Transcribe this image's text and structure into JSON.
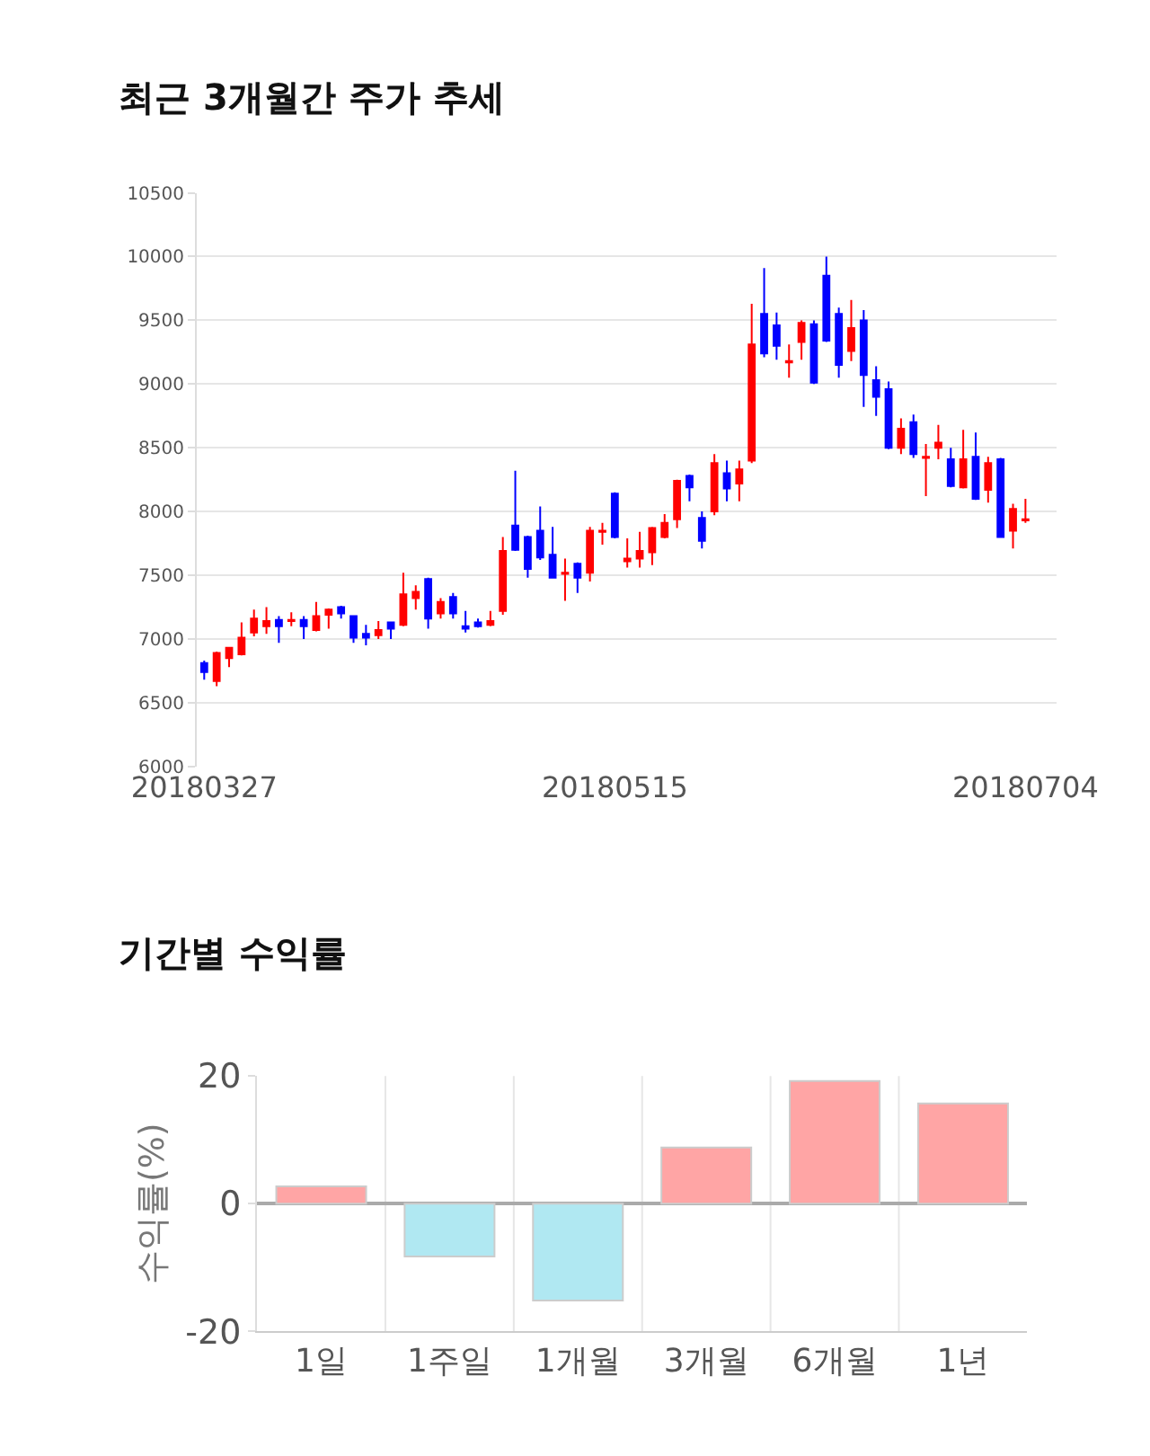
{
  "chart_data": [
    {
      "type": "candlestick",
      "title": "최근 3개월간 주가 추세",
      "categories": [
        "20180327",
        null,
        null,
        null,
        null,
        null,
        null,
        null,
        null,
        null,
        null,
        null,
        null,
        null,
        null,
        null,
        null,
        null,
        null,
        null,
        null,
        null,
        null,
        null,
        null,
        null,
        null,
        null,
        null,
        null,
        null,
        null,
        null,
        "20180515",
        null,
        null,
        null,
        null,
        null,
        null,
        null,
        null,
        null,
        null,
        null,
        null,
        null,
        null,
        null,
        null,
        null,
        null,
        null,
        null,
        null,
        null,
        null,
        null,
        null,
        null,
        null,
        null,
        null,
        null,
        null,
        null,
        "20180704"
      ],
      "ohlc": [
        [
          6810,
          6830,
          6680,
          6740
        ],
        [
          6670,
          6900,
          6630,
          6890
        ],
        [
          6850,
          6930,
          6780,
          6930
        ],
        [
          6880,
          7130,
          6870,
          7010
        ],
        [
          7050,
          7230,
          7020,
          7160
        ],
        [
          7100,
          7250,
          7040,
          7140
        ],
        [
          7150,
          7180,
          6970,
          7100
        ],
        [
          7140,
          7210,
          7100,
          7150
        ],
        [
          7150,
          7180,
          7000,
          7100
        ],
        [
          7070,
          7290,
          7060,
          7180
        ],
        [
          7190,
          7240,
          7080,
          7230
        ],
        [
          7250,
          7260,
          7160,
          7200
        ],
        [
          7180,
          7180,
          6970,
          7010
        ],
        [
          7040,
          7110,
          6950,
          7010
        ],
        [
          7030,
          7140,
          7000,
          7070
        ],
        [
          7130,
          7130,
          7000,
          7080
        ],
        [
          7110,
          7520,
          7100,
          7350
        ],
        [
          7320,
          7420,
          7230,
          7370
        ],
        [
          7470,
          7480,
          7080,
          7160
        ],
        [
          7200,
          7320,
          7160,
          7290
        ],
        [
          7330,
          7360,
          7160,
          7200
        ],
        [
          7100,
          7220,
          7050,
          7080
        ],
        [
          7130,
          7160,
          7090,
          7100
        ],
        [
          7110,
          7220,
          7100,
          7140
        ],
        [
          7220,
          7800,
          7190,
          7690
        ],
        [
          7890,
          8320,
          7690,
          7700
        ],
        [
          7800,
          7810,
          7480,
          7550
        ],
        [
          7850,
          8040,
          7620,
          7640
        ],
        [
          7660,
          7880,
          7480,
          7480
        ],
        [
          7510,
          7630,
          7300,
          7520
        ],
        [
          7590,
          7600,
          7360,
          7480
        ],
        [
          7520,
          7880,
          7450,
          7850
        ],
        [
          7840,
          7910,
          7740,
          7850
        ],
        [
          8140,
          8150,
          7790,
          7800
        ],
        [
          7610,
          7790,
          7560,
          7630
        ],
        [
          7630,
          7840,
          7560,
          7690
        ],
        [
          7680,
          7880,
          7580,
          7870
        ],
        [
          7800,
          7980,
          7790,
          7910
        ],
        [
          7940,
          8250,
          7870,
          8240
        ],
        [
          8280,
          8290,
          8080,
          8190
        ],
        [
          7950,
          8000,
          7710,
          7770
        ],
        [
          8000,
          8450,
          7970,
          8380
        ],
        [
          8300,
          8400,
          8080,
          8180
        ],
        [
          8220,
          8400,
          8080,
          8330
        ],
        [
          8400,
          9630,
          8380,
          9310
        ],
        [
          9550,
          9910,
          9210,
          9240
        ],
        [
          9460,
          9560,
          9190,
          9300
        ],
        [
          9170,
          9310,
          9050,
          9180
        ],
        [
          9330,
          9500,
          9190,
          9480
        ],
        [
          9470,
          9500,
          9000,
          9010
        ],
        [
          9850,
          10000,
          9330,
          9340
        ],
        [
          9550,
          9600,
          9050,
          9150
        ],
        [
          9260,
          9660,
          9180,
          9440
        ],
        [
          9500,
          9580,
          8820,
          9070
        ],
        [
          9030,
          9140,
          8750,
          8900
        ],
        [
          8960,
          9020,
          8490,
          8500
        ],
        [
          8500,
          8730,
          8450,
          8650
        ],
        [
          8700,
          8760,
          8420,
          8450
        ],
        [
          8420,
          8530,
          8120,
          8430
        ],
        [
          8500,
          8680,
          8410,
          8540
        ],
        [
          8410,
          8500,
          8190,
          8200
        ],
        [
          8190,
          8640,
          8180,
          8410
        ],
        [
          8430,
          8620,
          8090,
          8100
        ],
        [
          8170,
          8430,
          8070,
          8380
        ],
        [
          8410,
          8420,
          7800,
          7800
        ],
        [
          7850,
          8060,
          7710,
          8020
        ],
        [
          7930,
          8100,
          7910,
          7940
        ]
      ],
      "colors": [
        "#0000ff",
        "#ff0000",
        "#ff0000",
        "#ff0000",
        "#ff0000",
        "#ff0000",
        "#0000ff",
        "#ff0000",
        "#0000ff",
        "#ff0000",
        "#ff0000",
        "#0000ff",
        "#0000ff",
        "#0000ff",
        "#ff0000",
        "#0000ff",
        "#ff0000",
        "#ff0000",
        "#0000ff",
        "#ff0000",
        "#0000ff",
        "#0000ff",
        "#0000ff",
        "#ff0000",
        "#ff0000",
        "#0000ff",
        "#0000ff",
        "#0000ff",
        "#0000ff",
        "#ff0000",
        "#0000ff",
        "#ff0000",
        "#ff0000",
        "#0000ff",
        "#ff0000",
        "#ff0000",
        "#ff0000",
        "#ff0000",
        "#ff0000",
        "#0000ff",
        "#0000ff",
        "#ff0000",
        "#0000ff",
        "#ff0000",
        "#ff0000",
        "#0000ff",
        "#0000ff",
        "#ff0000",
        "#ff0000",
        "#0000ff",
        "#0000ff",
        "#0000ff",
        "#ff0000",
        "#0000ff",
        "#0000ff",
        "#0000ff",
        "#ff0000",
        "#0000ff",
        "#ff0000",
        "#ff0000",
        "#0000ff",
        "#ff0000",
        "#0000ff",
        "#ff0000",
        "#0000ff",
        "#ff0000",
        "#ff0000"
      ],
      "ylim": [
        6000,
        10500
      ],
      "yticks": [
        6000,
        6500,
        7000,
        7500,
        8000,
        8500,
        9000,
        9500,
        10000,
        10500
      ],
      "grid": "y"
    },
    {
      "type": "bar",
      "title": "기간별 수익률",
      "ylabel": "수익률(%)",
      "categories": [
        "1일",
        "1주일",
        "1개월",
        "3개월",
        "6개월",
        "1년"
      ],
      "values": [
        2.7,
        -8.3,
        -15.2,
        8.8,
        19.2,
        15.7
      ],
      "colors": [
        "#ffa5a5",
        "#b0e8f2",
        "#b0e8f2",
        "#ffa5a5",
        "#ffa5a5",
        "#ffa5a5"
      ],
      "ylim": [
        -20,
        20
      ],
      "yticks": [
        -20,
        0,
        20
      ],
      "grid": true
    }
  ]
}
